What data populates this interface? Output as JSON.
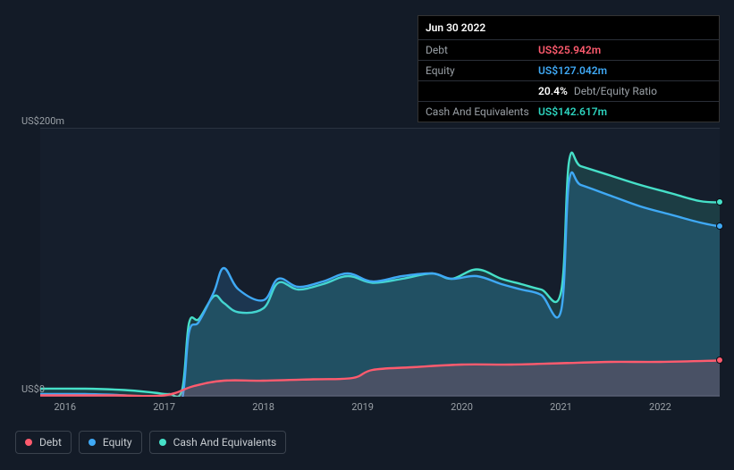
{
  "tooltip": {
    "date": "Jun 30 2022",
    "rows": {
      "debt": {
        "label": "Debt",
        "value": "US$25.942m"
      },
      "equity": {
        "label": "Equity",
        "value": "US$127.042m"
      },
      "ratio": {
        "pct": "20.4%",
        "label": "Debt/Equity Ratio"
      },
      "cash": {
        "label": "Cash And Equivalents",
        "value": "US$142.617m"
      }
    }
  },
  "chart": {
    "type": "area",
    "background_color": "#151e2c",
    "page_background": "#131b27",
    "grid_color": "#2a3340",
    "ylim": [
      0,
      200
    ],
    "ylabels": [
      {
        "v": 200,
        "text": "US$200m"
      },
      {
        "v": 0,
        "text": "US$0"
      }
    ],
    "xlim": [
      2015.75,
      2022.6
    ],
    "xticks": [
      2016,
      2017,
      2018,
      2019,
      2020,
      2021,
      2022
    ],
    "series": {
      "cash": {
        "label": "Cash And Equivalents",
        "color": "#46e0c8",
        "fill": "rgba(70,224,200,0.16)",
        "points": [
          [
            2015.75,
            6
          ],
          [
            2016.2,
            6
          ],
          [
            2016.6,
            5
          ],
          [
            2016.9,
            3
          ],
          [
            2017.05,
            2
          ],
          [
            2017.18,
            5
          ],
          [
            2017.25,
            55
          ],
          [
            2017.35,
            58
          ],
          [
            2017.5,
            75
          ],
          [
            2017.6,
            70
          ],
          [
            2017.75,
            63
          ],
          [
            2018.0,
            66
          ],
          [
            2018.15,
            85
          ],
          [
            2018.35,
            80
          ],
          [
            2018.6,
            84
          ],
          [
            2018.85,
            90
          ],
          [
            2019.1,
            85
          ],
          [
            2019.4,
            88
          ],
          [
            2019.7,
            92
          ],
          [
            2019.9,
            88
          ],
          [
            2020.15,
            95
          ],
          [
            2020.4,
            88
          ],
          [
            2020.6,
            84
          ],
          [
            2020.8,
            80
          ],
          [
            2021.0,
            78
          ],
          [
            2021.08,
            175
          ],
          [
            2021.2,
            172
          ],
          [
            2021.5,
            165
          ],
          [
            2021.8,
            158
          ],
          [
            2022.1,
            152
          ],
          [
            2022.4,
            146
          ],
          [
            2022.6,
            145
          ]
        ]
      },
      "equity": {
        "label": "Equity",
        "color": "#3fa9f5",
        "fill": "rgba(63,169,245,0.18)",
        "points": [
          [
            2015.75,
            2
          ],
          [
            2016.2,
            2
          ],
          [
            2016.6,
            1
          ],
          [
            2016.9,
            -2
          ],
          [
            2017.05,
            -4
          ],
          [
            2017.18,
            -2
          ],
          [
            2017.25,
            48
          ],
          [
            2017.35,
            56
          ],
          [
            2017.5,
            78
          ],
          [
            2017.6,
            96
          ],
          [
            2017.75,
            80
          ],
          [
            2018.0,
            72
          ],
          [
            2018.15,
            88
          ],
          [
            2018.35,
            82
          ],
          [
            2018.6,
            86
          ],
          [
            2018.85,
            92
          ],
          [
            2019.1,
            86
          ],
          [
            2019.4,
            90
          ],
          [
            2019.7,
            92
          ],
          [
            2019.9,
            88
          ],
          [
            2020.15,
            90
          ],
          [
            2020.4,
            84
          ],
          [
            2020.6,
            80
          ],
          [
            2020.8,
            76
          ],
          [
            2021.0,
            64
          ],
          [
            2021.08,
            160
          ],
          [
            2021.2,
            158
          ],
          [
            2021.5,
            150
          ],
          [
            2021.8,
            142
          ],
          [
            2022.1,
            136
          ],
          [
            2022.4,
            130
          ],
          [
            2022.6,
            127
          ]
        ]
      },
      "debt": {
        "label": "Debt",
        "color": "#ff5b6e",
        "fill": "rgba(255,91,110,0.18)",
        "points": [
          [
            2015.75,
            1
          ],
          [
            2016.5,
            1
          ],
          [
            2017.0,
            1
          ],
          [
            2017.3,
            8
          ],
          [
            2017.6,
            12
          ],
          [
            2018.0,
            12
          ],
          [
            2018.5,
            13
          ],
          [
            2018.9,
            14
          ],
          [
            2019.1,
            20
          ],
          [
            2019.5,
            22
          ],
          [
            2020.0,
            24
          ],
          [
            2020.5,
            24
          ],
          [
            2021.0,
            25
          ],
          [
            2021.5,
            26
          ],
          [
            2022.0,
            26
          ],
          [
            2022.6,
            27
          ]
        ]
      }
    },
    "end_markers": [
      {
        "series": "cash",
        "x": 2022.6,
        "y": 145
      },
      {
        "series": "equity",
        "x": 2022.6,
        "y": 127
      },
      {
        "series": "debt",
        "x": 2022.6,
        "y": 27
      }
    ],
    "legend": [
      {
        "key": "debt",
        "label": "Debt",
        "color": "#ff5b6e"
      },
      {
        "key": "equity",
        "label": "Equity",
        "color": "#3fa9f5"
      },
      {
        "key": "cash",
        "label": "Cash And Equivalents",
        "color": "#46e0c8"
      }
    ],
    "line_width": 2.4,
    "label_color": "#9aa0a6",
    "label_fontsize": 11
  }
}
